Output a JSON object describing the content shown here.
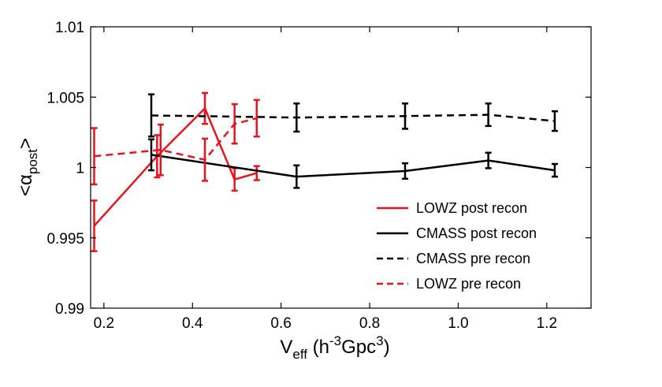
{
  "chart_data": {
    "type": "line",
    "title": "",
    "xlabel": {
      "base": "V",
      "sub": "eff",
      "open": " (h",
      "sup1": "-3",
      "mid": "Gpc",
      "sup2": "3",
      "close": ")"
    },
    "ylabel": {
      "open": "<α",
      "sub": "post",
      "close": ">"
    },
    "xlim": [
      0.17,
      1.3
    ],
    "ylim": [
      0.99,
      1.01
    ],
    "xticks": [
      0.2,
      0.4,
      0.6,
      0.8,
      1.0,
      1.2
    ],
    "xtick_labels": [
      "0.2",
      "0.4",
      "0.6",
      "0.8",
      "1.0",
      "1.2"
    ],
    "yticks": [
      0.99,
      0.995,
      1.0,
      1.005,
      1.01
    ],
    "ytick_labels": [
      "0.99",
      "0.995",
      "1",
      "1.005",
      "1.01"
    ],
    "grid": false,
    "legend_position": "lower-right",
    "series": [
      {
        "name": "LOWZ post recon",
        "color": "#e8141c",
        "dash": "solid",
        "x": [
          0.178,
          0.32,
          0.428,
          0.495,
          0.545
        ],
        "y": [
          0.99585,
          1.0008,
          1.0042,
          0.99915,
          0.9996
        ],
        "err": [
          0.0018,
          0.0015,
          0.0011,
          0.0008,
          0.0005
        ]
      },
      {
        "name": "CMASS post recon",
        "color": "#000000",
        "dash": "solid",
        "x": [
          0.307,
          0.635,
          0.88,
          1.068,
          1.218
        ],
        "y": [
          1.0009,
          0.99935,
          0.99975,
          1.0005,
          0.9998
        ],
        "err": [
          0.0011,
          0.0008,
          0.00055,
          0.00055,
          0.00045
        ]
      },
      {
        "name": "CMASS pre recon",
        "color": "#000000",
        "dash": "dashed",
        "x": [
          0.307,
          0.635,
          0.88,
          1.068,
          1.218
        ],
        "y": [
          1.0037,
          1.00355,
          1.00365,
          1.00375,
          1.0033
        ],
        "err": [
          0.0015,
          0.001,
          0.0009,
          0.0008,
          0.0007
        ]
      },
      {
        "name": "LOWZ pre recon",
        "color": "#e8141c",
        "dash": "dashed",
        "x": [
          0.178,
          0.328,
          0.428,
          0.495,
          0.545
        ],
        "y": [
          1.0008,
          1.00125,
          1.00055,
          1.0031,
          1.0035
        ],
        "err": [
          0.002,
          0.0018,
          0.0015,
          0.0014,
          0.0013
        ]
      }
    ],
    "legend_order": [
      0,
      1,
      2,
      3
    ]
  }
}
